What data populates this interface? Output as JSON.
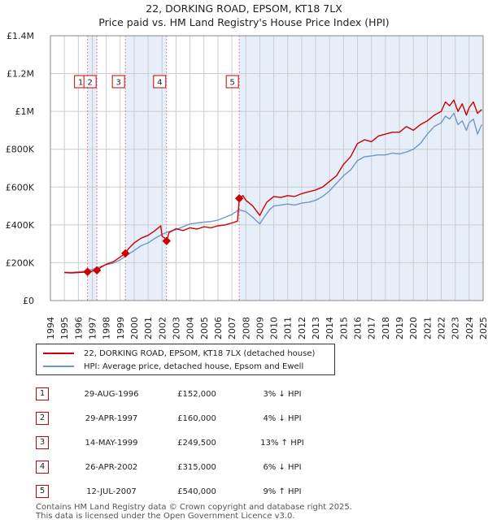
{
  "title": "22, DORKING ROAD, EPSOM, KT18 7LX",
  "subtitle": "Price paid vs. HM Land Registry's House Price Index (HPI)",
  "colors": {
    "property": "#cc0000",
    "hpi": "#6f98c8",
    "shade": "#e6eefa",
    "vline": "#e06080",
    "grid": "#cccccc"
  },
  "chart_data": {
    "type": "line",
    "title": "22, DORKING ROAD, EPSOM, KT18 7LX",
    "subtitle": "Price paid vs. HM Land Registry's House Price Index (HPI)",
    "xlabel": "",
    "ylabel": "",
    "xlim": [
      1994,
      2025
    ],
    "ylim": [
      0,
      1400000
    ],
    "y_ticks": [
      0,
      200000,
      400000,
      600000,
      800000,
      1000000,
      1200000,
      1400000
    ],
    "y_tick_labels": [
      "£0",
      "£200K",
      "£400K",
      "£600K",
      "£800K",
      "£1M",
      "£1.2M",
      "£1.4M"
    ],
    "x_tick_labels": [
      "1994",
      "1995",
      "1996",
      "1997",
      "1998",
      "1999",
      "2000",
      "2001",
      "2002",
      "2003",
      "2004",
      "2005",
      "2006",
      "2007",
      "2008",
      "2009",
      "2010",
      "2011",
      "2012",
      "2013",
      "2014",
      "2015",
      "2016",
      "2017",
      "2018",
      "2019",
      "2020",
      "2021",
      "2022",
      "2023",
      "2024",
      "2025"
    ],
    "grid": true,
    "shaded_periods": [
      [
        1996.66,
        1997.33
      ],
      [
        1999.37,
        2002.32
      ],
      [
        2007.53,
        2025.0
      ]
    ],
    "series": [
      {
        "name": "22, DORKING ROAD, EPSOM, KT18 7LX (detached house)",
        "color": "#cc0000",
        "x": [
          1995.0,
          1995.5,
          1996.0,
          1996.5,
          1996.66,
          1996.9,
          1997.2,
          1997.33,
          1997.6,
          1998.0,
          1998.5,
          1999.0,
          1999.37,
          1999.6,
          2000.0,
          2000.5,
          2001.0,
          2001.5,
          2001.9,
          2002.0,
          2002.2,
          2002.32,
          2002.5,
          2003.0,
          2003.5,
          2004.0,
          2004.5,
          2005.0,
          2005.5,
          2006.0,
          2006.5,
          2007.0,
          2007.4,
          2007.53,
          2007.8,
          2008.0,
          2008.5,
          2009.0,
          2009.2,
          2009.5,
          2010.0,
          2010.5,
          2011.0,
          2011.5,
          2012.0,
          2012.5,
          2013.0,
          2013.5,
          2014.0,
          2014.5,
          2015.0,
          2015.5,
          2016.0,
          2016.5,
          2017.0,
          2017.5,
          2018.0,
          2018.5,
          2019.0,
          2019.5,
          2020.0,
          2020.5,
          2021.0,
          2021.5,
          2022.0,
          2022.3,
          2022.6,
          2022.9,
          2023.2,
          2023.5,
          2023.8,
          2024.0,
          2024.3,
          2024.6,
          2024.9
        ],
        "values": [
          148000,
          146000,
          148000,
          150000,
          152000,
          154000,
          158000,
          160000,
          175000,
          192000,
          205000,
          230000,
          249500,
          275000,
          305000,
          330000,
          345000,
          370000,
          395000,
          340000,
          330000,
          315000,
          360000,
          380000,
          370000,
          385000,
          378000,
          390000,
          385000,
          395000,
          400000,
          410000,
          420000,
          540000,
          555000,
          530000,
          500000,
          450000,
          480000,
          520000,
          550000,
          545000,
          555000,
          550000,
          565000,
          575000,
          585000,
          600000,
          630000,
          660000,
          720000,
          760000,
          830000,
          850000,
          840000,
          870000,
          880000,
          890000,
          890000,
          920000,
          900000,
          930000,
          950000,
          980000,
          1000000,
          1050000,
          1030000,
          1060000,
          1000000,
          1040000,
          980000,
          1020000,
          1050000,
          990000,
          1010000
        ]
      },
      {
        "name": "HPI: Average price, detached house, Epsom and Ewell",
        "color": "#6f98c8",
        "x": [
          1995.0,
          1995.5,
          1996.0,
          1996.5,
          1997.0,
          1997.5,
          1998.0,
          1998.5,
          1999.0,
          1999.5,
          2000.0,
          2000.5,
          2001.0,
          2001.5,
          2002.0,
          2002.5,
          2003.0,
          2003.5,
          2004.0,
          2004.5,
          2005.0,
          2005.5,
          2006.0,
          2006.5,
          2007.0,
          2007.5,
          2008.0,
          2008.5,
          2009.0,
          2009.3,
          2009.7,
          2010.0,
          2010.5,
          2011.0,
          2011.5,
          2012.0,
          2012.5,
          2013.0,
          2013.5,
          2014.0,
          2014.5,
          2015.0,
          2015.5,
          2016.0,
          2016.5,
          2017.0,
          2017.5,
          2018.0,
          2018.5,
          2019.0,
          2019.5,
          2020.0,
          2020.5,
          2021.0,
          2021.5,
          2022.0,
          2022.3,
          2022.6,
          2022.9,
          2023.2,
          2023.5,
          2023.8,
          2024.0,
          2024.3,
          2024.6,
          2024.9
        ],
        "values": [
          150000,
          149000,
          152000,
          156000,
          165000,
          178000,
          190000,
          198000,
          215000,
          240000,
          265000,
          290000,
          305000,
          330000,
          350000,
          365000,
          375000,
          390000,
          405000,
          410000,
          415000,
          418000,
          425000,
          440000,
          455000,
          480000,
          470000,
          440000,
          405000,
          440000,
          480000,
          500000,
          505000,
          510000,
          505000,
          515000,
          520000,
          530000,
          550000,
          580000,
          620000,
          660000,
          690000,
          740000,
          760000,
          765000,
          770000,
          770000,
          780000,
          775000,
          785000,
          800000,
          830000,
          880000,
          920000,
          940000,
          975000,
          960000,
          990000,
          930000,
          950000,
          900000,
          940000,
          960000,
          880000,
          930000
        ]
      }
    ],
    "markers": [
      {
        "label": "1",
        "x": 1996.66,
        "y": 152000
      },
      {
        "label": "2",
        "x": 1997.33,
        "y": 160000
      },
      {
        "label": "3",
        "x": 1999.37,
        "y": 249500
      },
      {
        "label": "4",
        "x": 2002.32,
        "y": 315000
      },
      {
        "label": "5",
        "x": 2007.53,
        "y": 540000
      }
    ]
  },
  "legend": {
    "property_label": "22, DORKING ROAD, EPSOM, KT18 7LX (detached house)",
    "hpi_label": "HPI: Average price, detached house, Epsom and Ewell"
  },
  "transactions": [
    {
      "num": "1",
      "date": "29-AUG-1996",
      "price": "£152,000",
      "hpi": "3% ↓ HPI"
    },
    {
      "num": "2",
      "date": "29-APR-1997",
      "price": "£160,000",
      "hpi": "4% ↓ HPI"
    },
    {
      "num": "3",
      "date": "14-MAY-1999",
      "price": "£249,500",
      "hpi": "13% ↑ HPI"
    },
    {
      "num": "4",
      "date": "26-APR-2002",
      "price": "£315,000",
      "hpi": "6% ↓ HPI"
    },
    {
      "num": "5",
      "date": "12-JUL-2007",
      "price": "£540,000",
      "hpi": "9% ↑ HPI"
    }
  ],
  "footer": {
    "line1": "Contains HM Land Registry data © Crown copyright and database right 2025.",
    "line2": "This data is licensed under the Open Government Licence v3.0."
  }
}
